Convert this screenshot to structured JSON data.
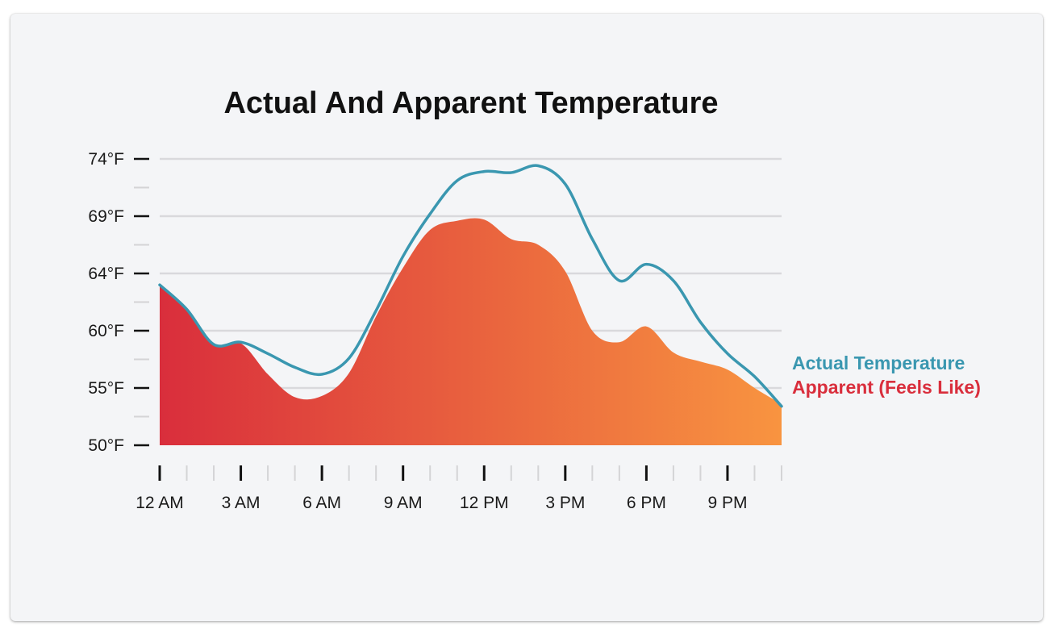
{
  "chart_data": {
    "type": "area",
    "title": "Actual And Apparent Temperature",
    "xlabel": "",
    "ylabel": "",
    "x_tick_labels": [
      "12 AM",
      "3 AM",
      "6 AM",
      "9 AM",
      "12 PM",
      "3 PM",
      "6 PM",
      "9 PM"
    ],
    "y_tick_labels": [
      "50°F",
      "55°F",
      "60°F",
      "64°F",
      "69°F",
      "74°F"
    ],
    "y_tick_values": [
      50,
      55,
      60,
      64,
      69,
      74
    ],
    "ylim": [
      50,
      74
    ],
    "x_hours": [
      0,
      1,
      2,
      3,
      4,
      5,
      6,
      7,
      8,
      9,
      10,
      11,
      12,
      13,
      14,
      15,
      16,
      17,
      18,
      19,
      20,
      21,
      22,
      23
    ],
    "grid": true,
    "legend_placement": "right",
    "series": [
      {
        "name": "Actual Temperature",
        "style": "line",
        "color": "#3a97b0",
        "values": [
          63.2,
          61.5,
          58.8,
          59.0,
          58.0,
          56.8,
          56.2,
          57.6,
          61.4,
          65.5,
          69.2,
          72.1,
          72.9,
          72.8,
          73.4,
          71.8,
          67.0,
          63.5,
          64.8,
          63.5,
          60.6,
          58.0,
          56.0,
          53.4
        ]
      },
      {
        "name": "Apparent (Feels Like)",
        "style": "area",
        "color_start": "#d92e3c",
        "color_end": "#f89440",
        "values": [
          63.2,
          61.5,
          58.8,
          58.9,
          56.2,
          54.2,
          54.3,
          56.3,
          61.0,
          64.5,
          67.8,
          68.6,
          68.7,
          67.0,
          66.5,
          64.2,
          60.0,
          59.0,
          60.3,
          58.1,
          57.3,
          56.6,
          55.0,
          53.6
        ]
      }
    ]
  },
  "colors": {
    "card_background": "#f4f5f7",
    "grid": "#d9d9dc",
    "axis_tick": "#111111",
    "minor_tick": "#d4d4d6",
    "actual_line": "#3a97b0",
    "apparent_start": "#d92e3c",
    "apparent_end": "#f89440"
  }
}
